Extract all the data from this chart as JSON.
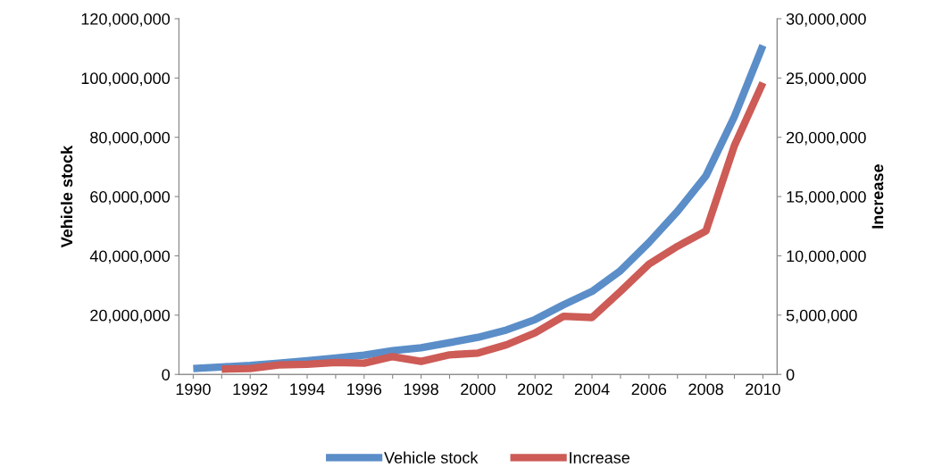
{
  "chart_data": {
    "type": "line",
    "ylabel": "Vehicle stock",
    "y2label": "Increase",
    "categories": [
      "1990",
      null,
      "1992",
      null,
      "1994",
      null,
      "1996",
      null,
      "1998",
      null,
      "2000",
      null,
      "2002",
      null,
      "2004",
      null,
      "2006",
      null,
      "2008",
      null,
      "2010"
    ],
    "series": [
      {
        "name": "Vehicle stock",
        "color": "#5b8ec8",
        "values": [
          2000000,
          2500000,
          3000000,
          3800000,
          4600000,
          5500000,
          6500000,
          8000000,
          9000000,
          10700000,
          12500000,
          15000000,
          18500000,
          23500000,
          28000000,
          35000000,
          44500000,
          55000000,
          67000000,
          87000000,
          111000000
        ]
      },
      {
        "name": "Increase",
        "color": "#cd5b56",
        "axis": "y2",
        "values": [
          null,
          450000,
          500000,
          800000,
          850000,
          1000000,
          950000,
          1500000,
          1100000,
          1650000,
          1800000,
          2500000,
          3500000,
          4900000,
          4800000,
          7000000,
          9300000,
          10800000,
          12100000,
          19300000,
          24600000
        ]
      }
    ],
    "ylim": [
      0,
      120000000
    ],
    "yticks": [
      {
        "value": 0,
        "label": "0"
      },
      {
        "value": 20000000,
        "label": "20,000,000"
      },
      {
        "value": 40000000,
        "label": "40,000,000"
      },
      {
        "value": 60000000,
        "label": "60,000,000"
      },
      {
        "value": 80000000,
        "label": "80,000,000"
      },
      {
        "value": 100000000,
        "label": "100,000,000"
      },
      {
        "value": 120000000,
        "label": "120,000,000"
      }
    ],
    "y2lim": [
      0,
      30000000
    ],
    "y2ticks": [
      {
        "value": 0,
        "label": "0"
      },
      {
        "value": 5000000,
        "label": "5,000,000"
      },
      {
        "value": 10000000,
        "label": "10,000,000"
      },
      {
        "value": 15000000,
        "label": "15,000,000"
      },
      {
        "value": 20000000,
        "label": "20,000,000"
      },
      {
        "value": 25000000,
        "label": "25,000,000"
      },
      {
        "value": 30000000,
        "label": "30,000,000"
      }
    ],
    "grid": false,
    "legend": "bottom",
    "marker": "none",
    "line_style": "solid"
  }
}
